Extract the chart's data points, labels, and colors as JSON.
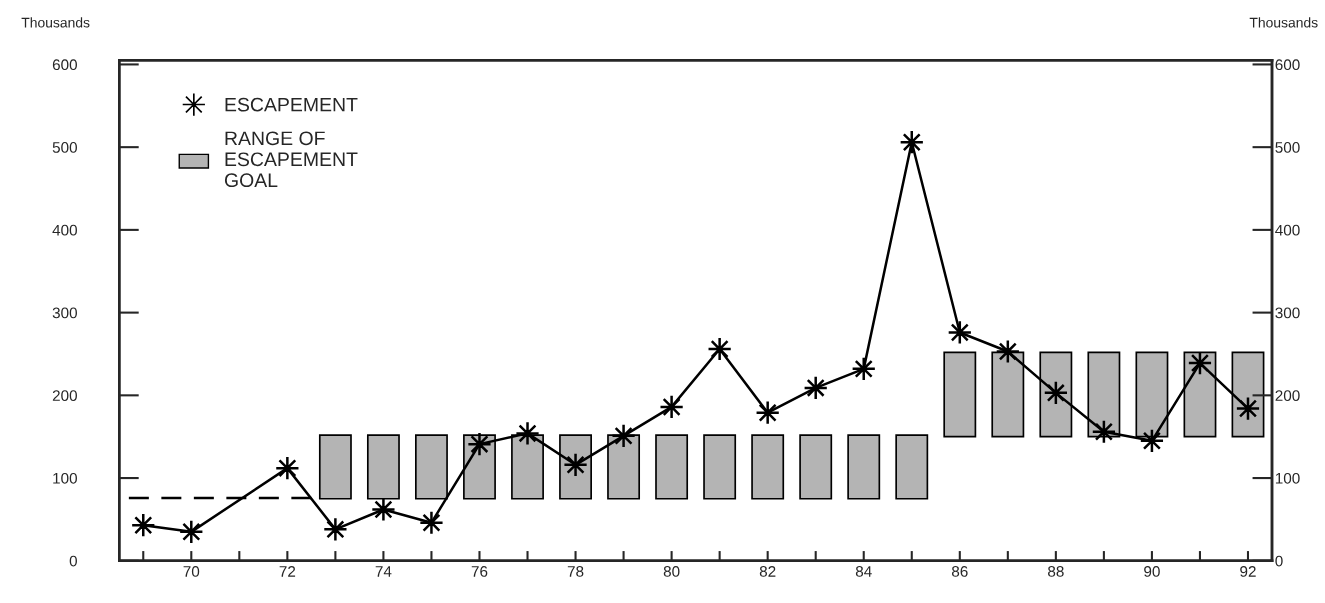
{
  "chart_data": {
    "type": "bar",
    "ylabel": "Thousands",
    "y2label": "Thousands",
    "xlim": [
      68.5,
      92.5
    ],
    "xticks": [
      {
        "value": 69,
        "label": null
      },
      70,
      {
        "value": 71,
        "label": null
      },
      72,
      {
        "value": 73,
        "label": null
      },
      74,
      {
        "value": 75,
        "label": null
      },
      76,
      {
        "value": 77,
        "label": null
      },
      78,
      {
        "value": 79,
        "label": null
      },
      80,
      {
        "value": 81,
        "label": null
      },
      82,
      {
        "value": 83,
        "label": null
      },
      84,
      {
        "value": 85,
        "label": null
      },
      86,
      {
        "value": 87,
        "label": null
      },
      88,
      {
        "value": 89,
        "label": null
      },
      90,
      {
        "value": 91,
        "label": null
      },
      92
    ],
    "ylim": [
      0,
      605
    ],
    "yticks": [
      0,
      100,
      200,
      300,
      400,
      500,
      600
    ],
    "y2lim": [
      0,
      605
    ],
    "y2ticks": [
      0,
      100,
      200,
      300,
      400,
      500,
      600
    ],
    "legend": "top left",
    "grid": false,
    "series": [
      {
        "type": "line",
        "name": "ESCAPEMENT",
        "line_style": "solid",
        "marker": "star",
        "color": "#000000",
        "x": [
          69,
          70,
          72,
          73,
          74,
          75,
          76,
          77,
          78,
          79,
          80,
          81,
          82,
          83,
          84,
          85,
          86,
          87,
          88,
          89,
          90,
          91,
          92
        ],
        "values": [
          43,
          35,
          112,
          38,
          62,
          46,
          141,
          154,
          116,
          151,
          186,
          256,
          179,
          209,
          232,
          506,
          276,
          253,
          203,
          156,
          145,
          239,
          184
        ]
      },
      {
        "name": "RANGE OF\nESCAPEMENT\nGOAL",
        "color": "#b4b4b4",
        "x": [
          73,
          74,
          75,
          76,
          77,
          78,
          79,
          80,
          81,
          82,
          83,
          84,
          85,
          86,
          87,
          88,
          89,
          90,
          91,
          92
        ],
        "base": [
          75,
          75,
          75,
          75,
          75,
          75,
          75,
          75,
          75,
          75,
          75,
          75,
          75,
          150,
          150,
          150,
          150,
          150,
          150,
          150
        ],
        "values": [
          77,
          77,
          77,
          77,
          77,
          77,
          77,
          77,
          77,
          77,
          77,
          77,
          77,
          102,
          102,
          102,
          102,
          102,
          102,
          102
        ]
      },
      {
        "type": "line",
        "line_style": "dashed",
        "marker": "none",
        "color": "#000000",
        "x": [
          68.7,
          72.6
        ],
        "values": [
          76,
          76
        ]
      }
    ]
  }
}
